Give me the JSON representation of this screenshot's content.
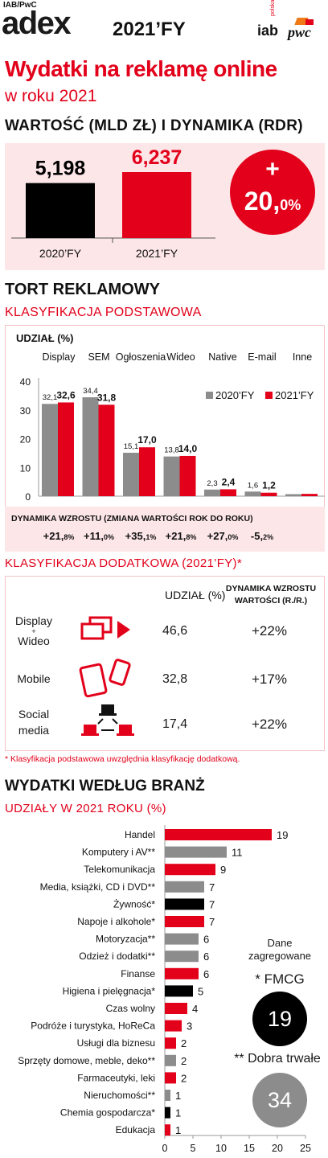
{
  "header": {
    "kicker": "IAB/PwC",
    "brand": "adex",
    "period": "2021’FY",
    "logo_iab": "iab",
    "logo_iab_sub": "polska",
    "logo_pwc": "pwc",
    "title": "Wydatki na reklamę online",
    "subtitle": "w roku 2021"
  },
  "value_section": {
    "title": "WARTOŚĆ (MLD ZŁ) I DYNAMIKA (RDR)",
    "dynamic_sign": "+",
    "dynamic_main": "20,",
    "dynamic_suffix": "0%",
    "colors": {
      "prev": "#000000",
      "curr": "#e2001a",
      "bg": "#fde6e8"
    }
  },
  "pie_section": {
    "title": "TORT REKLAMOWY",
    "subtitle": "KLASYFIKACJA PODSTAWOWA",
    "share_label": "UDZIAŁ (%)",
    "dyn_label": "DYNAMIKA WZROSTU (ZMIANA WARTOŚCI ROK DO ROKU)",
    "dynamics": [
      {
        "main": "+21,",
        "small": "8%"
      },
      {
        "main": "+11,",
        "small": "0%"
      },
      {
        "main": "+35,",
        "small": "1%"
      },
      {
        "main": "+21,",
        "small": "8%"
      },
      {
        "main": "+27,",
        "small": "0%"
      },
      {
        "main": "-5,",
        "small": "2%"
      }
    ]
  },
  "extra_section": {
    "title": "KLASYFIKACJA DODATKOWA (2021’FY)*",
    "col_share": "UDZIAŁ (%)",
    "col_dyn_line1": "DYNAMIKA WZROSTU",
    "col_dyn_line2": "WARTOŚCI (R./R.)",
    "rows": [
      {
        "label1": "Display",
        "plus": "+",
        "label2": "Wideo",
        "icon": "display-video-icon",
        "share": "46,6",
        "dyn": "+22%"
      },
      {
        "label1": "Mobile",
        "plus": "",
        "label2": "",
        "icon": "mobile-devices-icon",
        "share": "32,8",
        "dyn": "+17%"
      },
      {
        "label1": "Social",
        "plus": "",
        "label2": "media",
        "icon": "social-network-icon",
        "share": "17,4",
        "dyn": "+22%"
      }
    ],
    "footnote": "* Klasyfikacja podstawowa uwzględnia klasyfikację dodatkową."
  },
  "industry_section": {
    "title": "WYDATKI WEDŁUG BRANŻ",
    "subtitle": "UDZIAŁY W 2021 ROKU (%)",
    "legend_title_1": "Dane",
    "legend_title_2": "zagregowane",
    "fmcg_label": "* FMCG",
    "fmcg_value": "19",
    "durable_label": "** Dobra trwałe",
    "durable_value": "34"
  },
  "chart_data": [
    {
      "type": "bar",
      "categories": [
        "2020’FY",
        "2021’FY"
      ],
      "values": [
        5.198,
        6.237
      ],
      "value_labels": [
        "5,198",
        "6,237"
      ],
      "title": "WARTOŚĆ (MLD ZŁ) I DYNAMIKA (RDR)",
      "colors": [
        "#000000",
        "#e2001a"
      ]
    },
    {
      "type": "bar",
      "categories": [
        "Display",
        "SEM",
        "Ogłoszenia",
        "Wideo",
        "Native",
        "E-mail",
        "Inne"
      ],
      "series": [
        {
          "name": "2020’FY",
          "values": [
            32.1,
            34.4,
            15.1,
            13.8,
            2.3,
            1.6,
            0.7
          ],
          "labels": [
            "32,1",
            "34,4",
            "15,1",
            "13,8",
            "2,3",
            "1,6",
            ""
          ],
          "color": "#8c8c8c"
        },
        {
          "name": "2021’FY",
          "values": [
            32.6,
            31.8,
            17.0,
            14.0,
            2.4,
            1.2,
            0.8
          ],
          "labels": [
            "32,6",
            "31,8",
            "17,0",
            "14,0",
            "2,4",
            "1,2",
            ""
          ],
          "color": "#e2001a"
        }
      ],
      "ylim": [
        0,
        40
      ],
      "yticks": [
        0,
        10,
        20,
        30,
        40
      ],
      "legend": "right",
      "grid": false
    },
    {
      "type": "bar",
      "orientation": "horizontal",
      "categories": [
        "Handel",
        "Komputery i AV**",
        "Telekomunikacja",
        "Media, książki, CD i DVD**",
        "Żywność*",
        "Napoje i alkohole*",
        "Motoryzacja**",
        "Odzież i dodatki**",
        "Finanse",
        "Higiena i pielęgnacja*",
        "Czas wolny",
        "Podróże i turystyka, HoReCa",
        "Usługi dla biznesu",
        "Sprzęty domowe, meble, deko**",
        "Farmaceutyki, leki",
        "Nieruchomości**",
        "Chemia gospodarcza*",
        "Edukacja"
      ],
      "values": [
        19,
        11,
        9,
        7,
        7,
        7,
        6,
        6,
        6,
        5,
        4,
        3,
        2,
        2,
        2,
        1,
        1,
        1
      ],
      "colors": [
        "#e2001a",
        "#8c8c8c",
        "#e2001a",
        "#8c8c8c",
        "#000000",
        "#e2001a",
        "#8c8c8c",
        "#8c8c8c",
        "#e2001a",
        "#000000",
        "#e2001a",
        "#e2001a",
        "#e2001a",
        "#8c8c8c",
        "#e2001a",
        "#8c8c8c",
        "#000000",
        "#e2001a"
      ],
      "xlim": [
        0,
        25
      ],
      "xticks": [
        0,
        5,
        10,
        15,
        20,
        25
      ]
    }
  ]
}
